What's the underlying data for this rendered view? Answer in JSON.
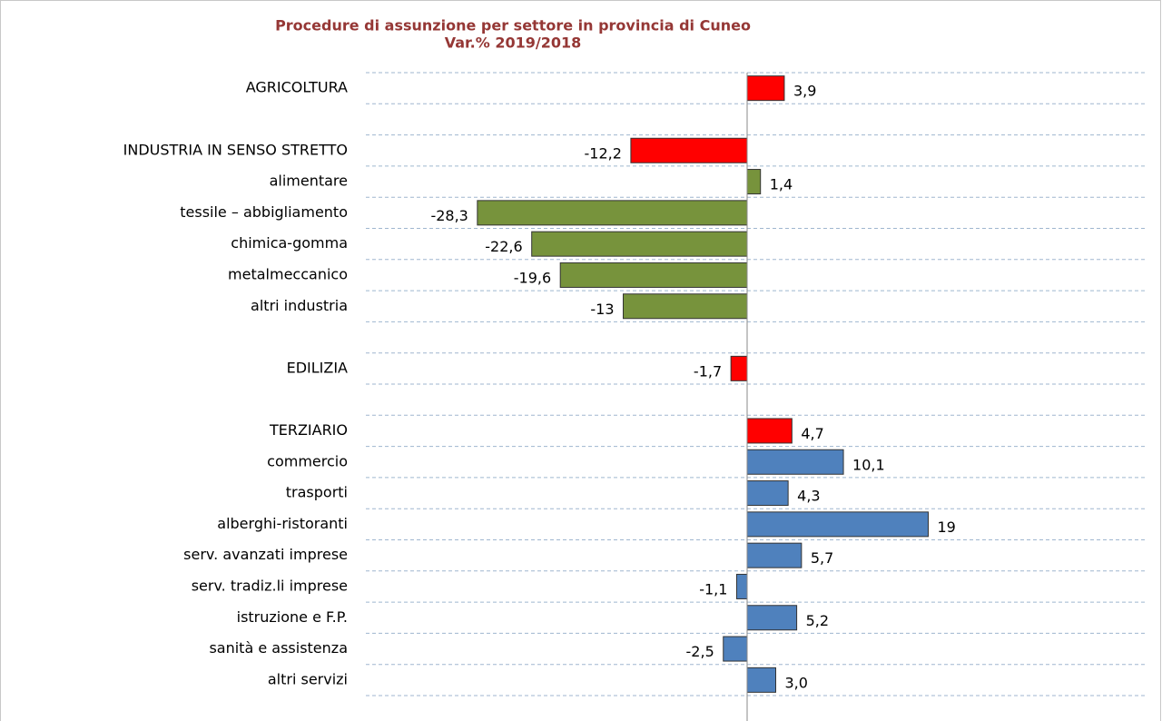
{
  "chart_data": {
    "type": "hbar",
    "title": "Procedure di assunzione per settore in provincia di Cuneo",
    "subtitle": "Var.% 2019/2018",
    "categories": [
      "AGRICOLTURA",
      null,
      "INDUSTRIA IN SENSO STRETTO",
      "alimentare",
      "tessile – abbigliamento",
      "chimica-gomma",
      "metalmeccanico",
      "altri industria",
      null,
      "EDILIZIA",
      null,
      "TERZIARIO",
      "commercio",
      "trasporti",
      "alberghi-ristoranti",
      "serv. avanzati imprese",
      "serv. tradiz.li imprese",
      "istruzione e F.P.",
      "sanità e assistenza",
      "altri servizi"
    ],
    "values": [
      3.9,
      null,
      -12.2,
      1.4,
      -28.3,
      -22.6,
      -19.6,
      -13,
      null,
      -1.7,
      null,
      4.7,
      10.1,
      4.3,
      19,
      5.7,
      -1.1,
      5.2,
      -2.5,
      3.0
    ],
    "value_labels": [
      "3,9",
      null,
      "-12,2",
      "1,4",
      "-28,3",
      "-22,6",
      "-19,6",
      "-13",
      null,
      "-1,7",
      null,
      "4,7",
      "10,1",
      "4,3",
      "19",
      "5,7",
      "-1,1",
      "5,2",
      "-2,5",
      "3,0"
    ],
    "colors": [
      "#ff0000",
      null,
      "#ff0000",
      "#77933c",
      "#77933c",
      "#77933c",
      "#77933c",
      "#77933c",
      null,
      "#ff0000",
      null,
      "#ff0000",
      "#4f81bd",
      "#4f81bd",
      "#4f81bd",
      "#4f81bd",
      "#4f81bd",
      "#4f81bd",
      "#4f81bd",
      "#4f81bd"
    ],
    "xlim": [
      -40,
      42
    ]
  }
}
